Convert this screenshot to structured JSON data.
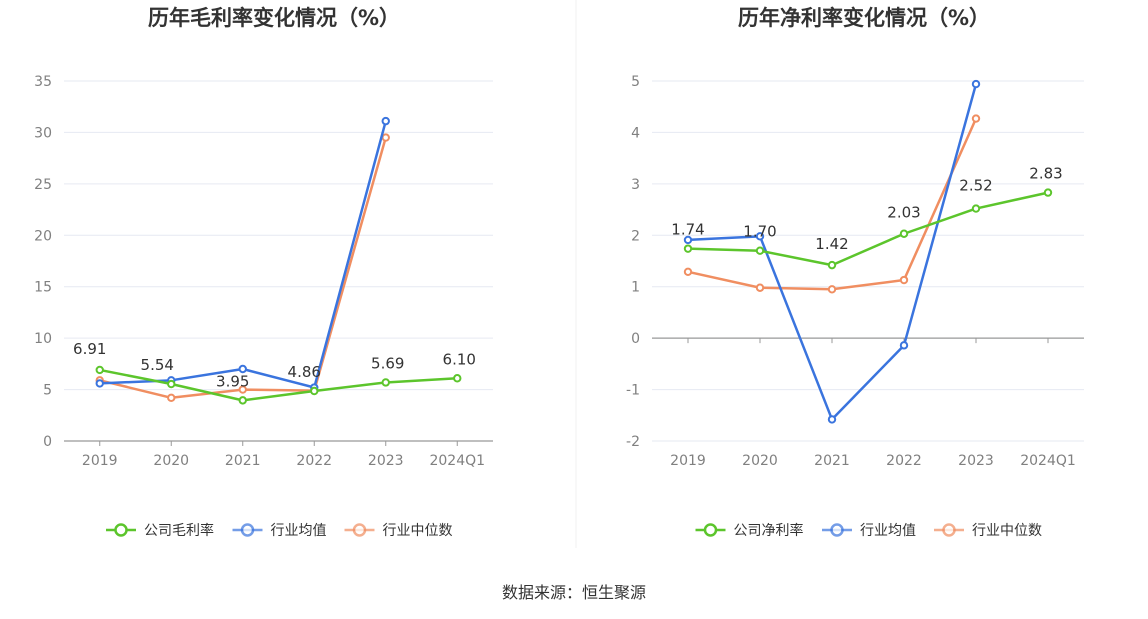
{
  "source": "数据来源：恒生聚源",
  "colors": {
    "company": "#5cc52c",
    "avg": "#3a74de",
    "median": "#f08e61"
  },
  "chart_data": [
    {
      "type": "line",
      "title": "历年毛利率变化情况（%）",
      "categories": [
        "2019",
        "2020",
        "2021",
        "2022",
        "2023",
        "2024Q1"
      ],
      "ylim": [
        0,
        35
      ],
      "yticks": [
        0,
        5,
        10,
        15,
        20,
        25,
        30,
        35
      ],
      "grid": true,
      "legend": "bottom",
      "series": [
        {
          "name": "公司毛利率",
          "key": "company",
          "values": [
            6.91,
            5.54,
            3.95,
            4.86,
            5.69,
            6.1
          ],
          "labels": [
            "6.91",
            "5.54",
            "3.95",
            "4.86",
            "5.69",
            "6.10"
          ]
        },
        {
          "name": "行业均值",
          "key": "avg",
          "values": [
            5.6,
            5.9,
            7.0,
            5.2,
            31.1,
            null
          ]
        },
        {
          "name": "行业中位数",
          "key": "median",
          "values": [
            5.9,
            4.2,
            5.0,
            4.9,
            29.5,
            null
          ]
        }
      ]
    },
    {
      "type": "line",
      "title": "历年净利率变化情况（%）",
      "categories": [
        "2019",
        "2020",
        "2021",
        "2022",
        "2023",
        "2024Q1"
      ],
      "ylim": [
        -2,
        5
      ],
      "yticks": [
        -2,
        -1,
        0,
        1,
        2,
        3,
        4,
        5
      ],
      "grid": true,
      "legend": "bottom",
      "series": [
        {
          "name": "公司净利率",
          "key": "company",
          "values": [
            1.74,
            1.7,
            1.42,
            2.03,
            2.52,
            2.83
          ],
          "labels": [
            "1.74",
            "1.70",
            "1.42",
            "2.03",
            "2.52",
            "2.83"
          ]
        },
        {
          "name": "行业均值",
          "key": "avg",
          "values": [
            1.91,
            1.98,
            -1.58,
            -0.14,
            4.94,
            null
          ]
        },
        {
          "name": "行业中位数",
          "key": "median",
          "values": [
            1.29,
            0.98,
            0.95,
            1.13,
            4.27,
            null
          ]
        }
      ]
    }
  ]
}
